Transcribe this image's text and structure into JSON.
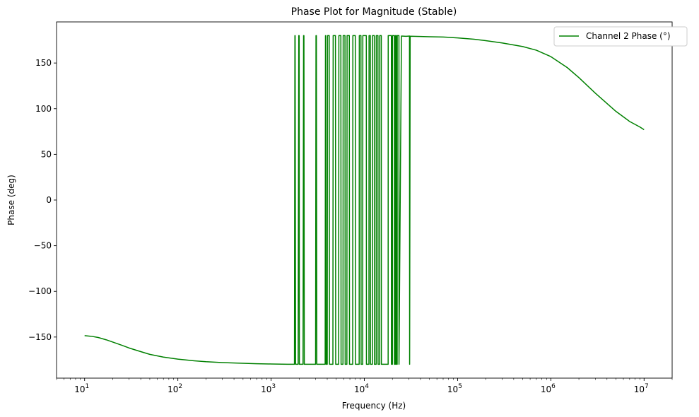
{
  "chart_data": {
    "type": "line",
    "title": "Phase Plot for Magnitude (Stable)",
    "xlabel": "Frequency (Hz)",
    "ylabel": "Phase (deg)",
    "xscale": "log",
    "xlim": [
      5,
      20000000
    ],
    "ylim": [
      -195,
      195
    ],
    "yticks": [
      -150,
      -100,
      -50,
      0,
      50,
      100,
      150
    ],
    "yticklabels": [
      "−150",
      "−100",
      "−50",
      "0",
      "50",
      "100",
      "150"
    ],
    "xtick_exponents": [
      1,
      2,
      3,
      4,
      5,
      6,
      7
    ],
    "xtick_base": "10",
    "grid": false,
    "legend": {
      "position": "top-right",
      "entries": [
        "Channel 2 Phase (°)"
      ]
    },
    "colors": {
      "series": "#008000",
      "frame": "#000000",
      "legend_border": "#cccccc"
    },
    "series": [
      {
        "name": "Channel 2 Phase (°)",
        "x": [
          10,
          12,
          14,
          17,
          20,
          25,
          30,
          40,
          50,
          70,
          100,
          150,
          200,
          300,
          500,
          700,
          1000,
          1500,
          1780,
          1800,
          1810,
          1830,
          1950,
          1980,
          2000,
          2010,
          2200,
          2230,
          2250,
          2270,
          3000,
          3030,
          3060,
          3090,
          3800,
          3830,
          3850,
          3900,
          4000,
          4030,
          4200,
          4230,
          4600,
          4630,
          4900,
          4930,
          5300,
          5330,
          5600,
          5630,
          5900,
          5930,
          6200,
          6230,
          6500,
          6530,
          6900,
          6930,
          7500,
          7530,
          8000,
          8030,
          8800,
          8830,
          9200,
          9230,
          9600,
          9630,
          10500,
          10530,
          11200,
          11230,
          11600,
          11630,
          12200,
          12230,
          12800,
          12830,
          13400,
          13430,
          14000,
          14030,
          14600,
          14630,
          15200,
          15230,
          18000,
          18030,
          19500,
          19530,
          20000,
          20030,
          21000,
          21030,
          21500,
          21530,
          22000,
          22030,
          22500,
          22530,
          23500,
          23530,
          25000,
          28000,
          30500,
          30600,
          31000,
          40000,
          50000,
          70000,
          100000,
          150000,
          200000,
          300000,
          500000,
          700000,
          1000000,
          1500000,
          2000000,
          3000000,
          5000000,
          7000000,
          9000000,
          10000000
        ],
        "y": [
          -148.5,
          -149.3,
          -150.5,
          -153,
          -155.5,
          -159,
          -162,
          -166,
          -169,
          -172,
          -174.2,
          -176,
          -177,
          -178,
          -178.8,
          -179.2,
          -179.5,
          -179.8,
          -179.8,
          180,
          180,
          -179.8,
          -179.8,
          180,
          180,
          -179.8,
          -179.8,
          180,
          180,
          -179.8,
          -179.8,
          180,
          180,
          -179.8,
          -179.8,
          180,
          180,
          -179.8,
          -179.8,
          180,
          180,
          -179.8,
          -179.8,
          180,
          180,
          -179.8,
          -179.8,
          180,
          180,
          -179.8,
          -179.8,
          180,
          180,
          -179.8,
          -179.8,
          180,
          180,
          -179.8,
          -179.8,
          180,
          180,
          -179.8,
          -179.8,
          180,
          180,
          -179.8,
          -179.8,
          180,
          180,
          -179.8,
          -179.8,
          180,
          180,
          -179.8,
          -179.8,
          180,
          180,
          -179.8,
          -179.8,
          180,
          180,
          -179.8,
          -179.8,
          180,
          180,
          -179.8,
          -179.8,
          180,
          180,
          -179.8,
          -179.8,
          180,
          180,
          -179.8,
          -179.8,
          180,
          180,
          -179.8,
          -179.8,
          180,
          180,
          -179.8,
          179.5,
          179.2,
          179.5,
          -179.8,
          179.3,
          179,
          178.8,
          178.5,
          177.5,
          176,
          174.5,
          172,
          168,
          164,
          157,
          145,
          134,
          117,
          97,
          86,
          80,
          77
        ]
      }
    ]
  }
}
